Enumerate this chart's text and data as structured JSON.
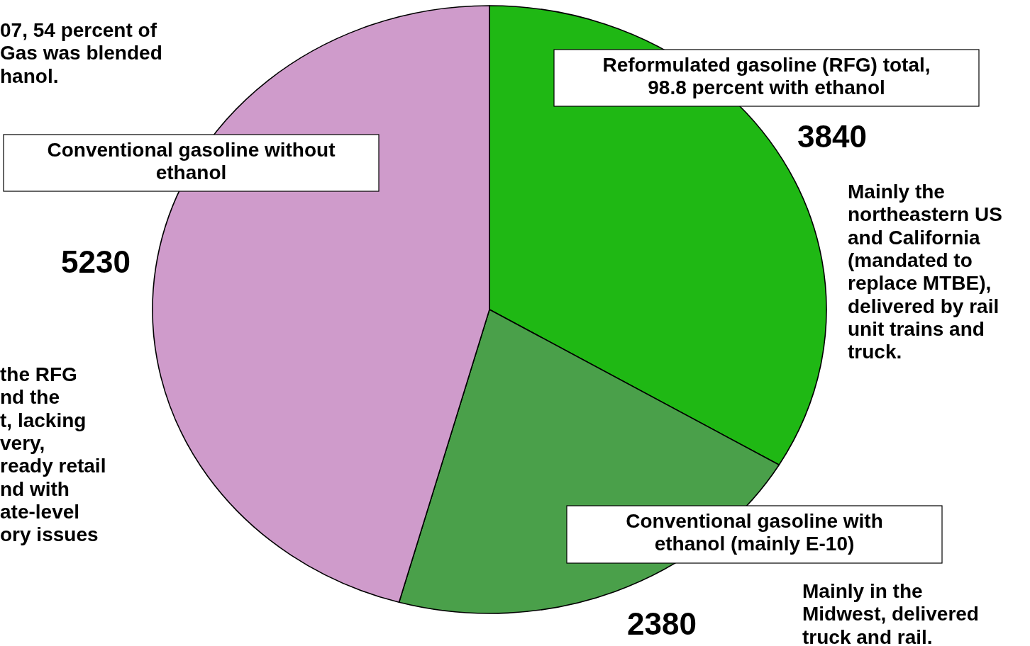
{
  "chart_data": {
    "type": "pie",
    "categories": [
      "Reformulated gasoline (RFG) total,\n98.8 percent with ethanol",
      "Conventional gasoline with\nethanol (mainly E-10)",
      "Conventional gasoline without\nethanol"
    ],
    "values": [
      3840,
      2380,
      5230
    ],
    "colors": [
      "#1fb814",
      "#4aa04a",
      "#cf9bcb"
    ],
    "data_labels": true,
    "annotations": [
      "07, 54 percent of\nGas was blended\nhanol.",
      "Mainly the\nnortheastern US\nand California\n(mandated to\nreplace MTBE),\ndelivered by rail\nunit trains and\ntruck.",
      "Mainly in the\nMidwest, delivered\ntruck and rail.",
      "the RFG\nnd the\nt, lacking\nvery,\nready retail\nnd with\nate-level\nory issues"
    ]
  }
}
